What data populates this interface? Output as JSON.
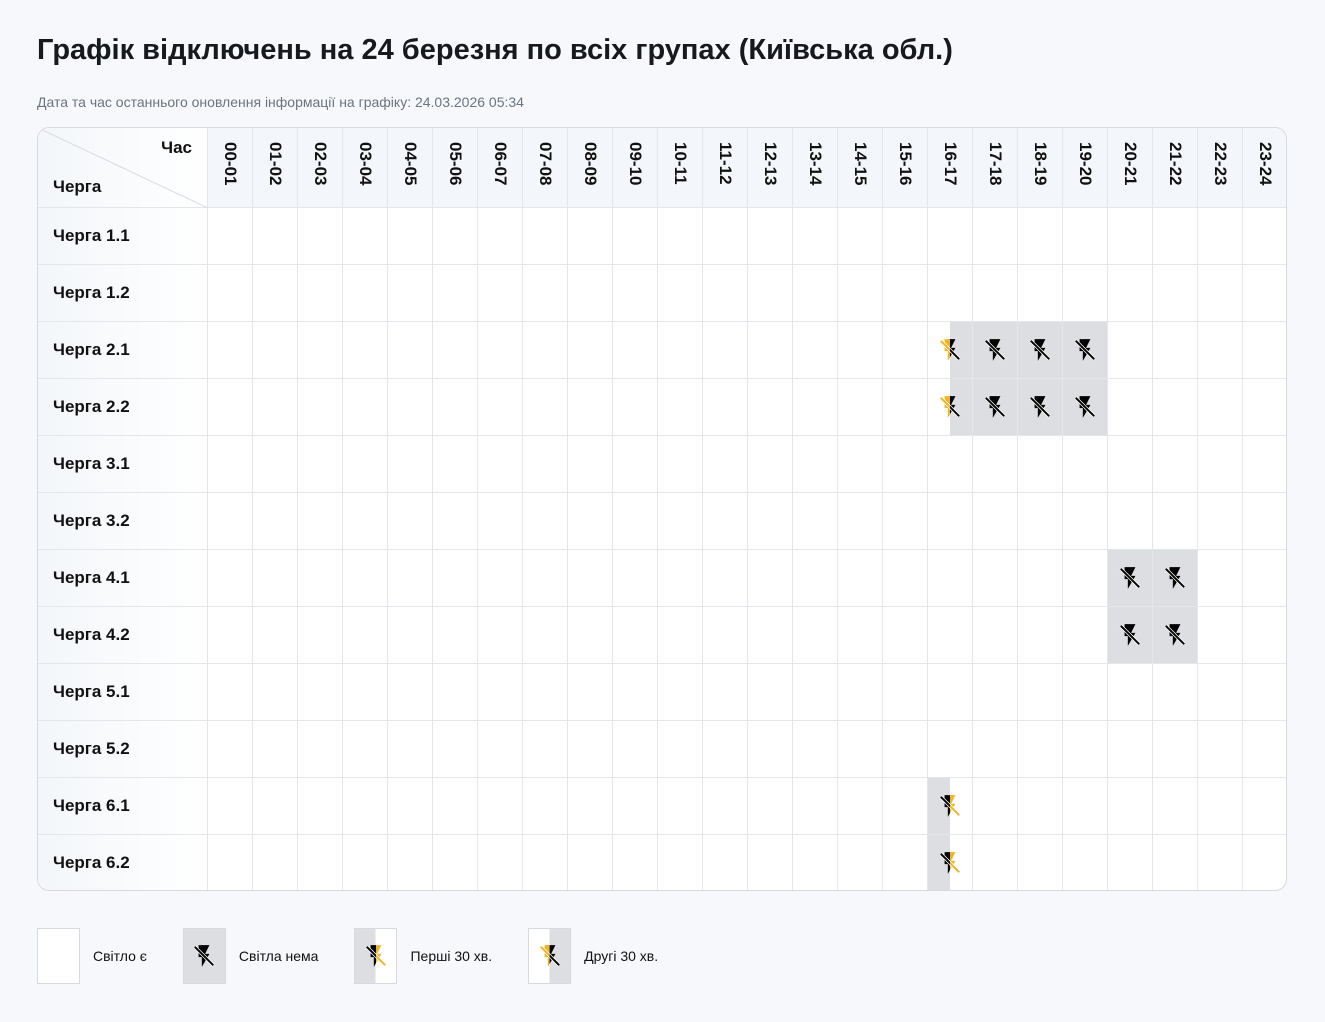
{
  "title": "Графік відключень на 24 березня по всіх групах (Київська обл.)",
  "updated": "Дата та час останнього оновлення інформації на графіку: 24.03.2026 05:34",
  "corner": {
    "hour": "Час",
    "group": "Черга"
  },
  "hours": [
    "00-01",
    "01-02",
    "02-03",
    "03-04",
    "04-05",
    "05-06",
    "06-07",
    "07-08",
    "08-09",
    "09-10",
    "10-11",
    "11-12",
    "12-13",
    "13-14",
    "14-15",
    "15-16",
    "16-17",
    "17-18",
    "18-19",
    "19-20",
    "20-21",
    "21-22",
    "22-23",
    "23-24"
  ],
  "groups": [
    {
      "name": "Черга 1.1",
      "outages": {}
    },
    {
      "name": "Черга 1.2",
      "outages": {}
    },
    {
      "name": "Черга 2.1",
      "outages": {
        "16-17": "second",
        "17-18": "off",
        "18-19": "off",
        "19-20": "off"
      }
    },
    {
      "name": "Черга 2.2",
      "outages": {
        "16-17": "second",
        "17-18": "off",
        "18-19": "off",
        "19-20": "off"
      }
    },
    {
      "name": "Черга 3.1",
      "outages": {}
    },
    {
      "name": "Черга 3.2",
      "outages": {}
    },
    {
      "name": "Черга 4.1",
      "outages": {
        "20-21": "off",
        "21-22": "off"
      }
    },
    {
      "name": "Черга 4.2",
      "outages": {
        "20-21": "off",
        "21-22": "off"
      }
    },
    {
      "name": "Черга 5.1",
      "outages": {}
    },
    {
      "name": "Черга 5.2",
      "outages": {}
    },
    {
      "name": "Черга 6.1",
      "outages": {
        "16-17": "first"
      }
    },
    {
      "name": "Черга 6.2",
      "outages": {
        "16-17": "first"
      }
    }
  ],
  "legend": [
    {
      "state": "on",
      "label": "Світло є"
    },
    {
      "state": "off",
      "label": "Світла нема"
    },
    {
      "state": "first",
      "label": "Перші 30 хв."
    },
    {
      "state": "second",
      "label": "Другі 30 хв."
    }
  ],
  "colors": {
    "off": "#dcdee2",
    "accent": "#f0b323",
    "icon": "#000000"
  },
  "icon": "power-off-bolt-icon"
}
